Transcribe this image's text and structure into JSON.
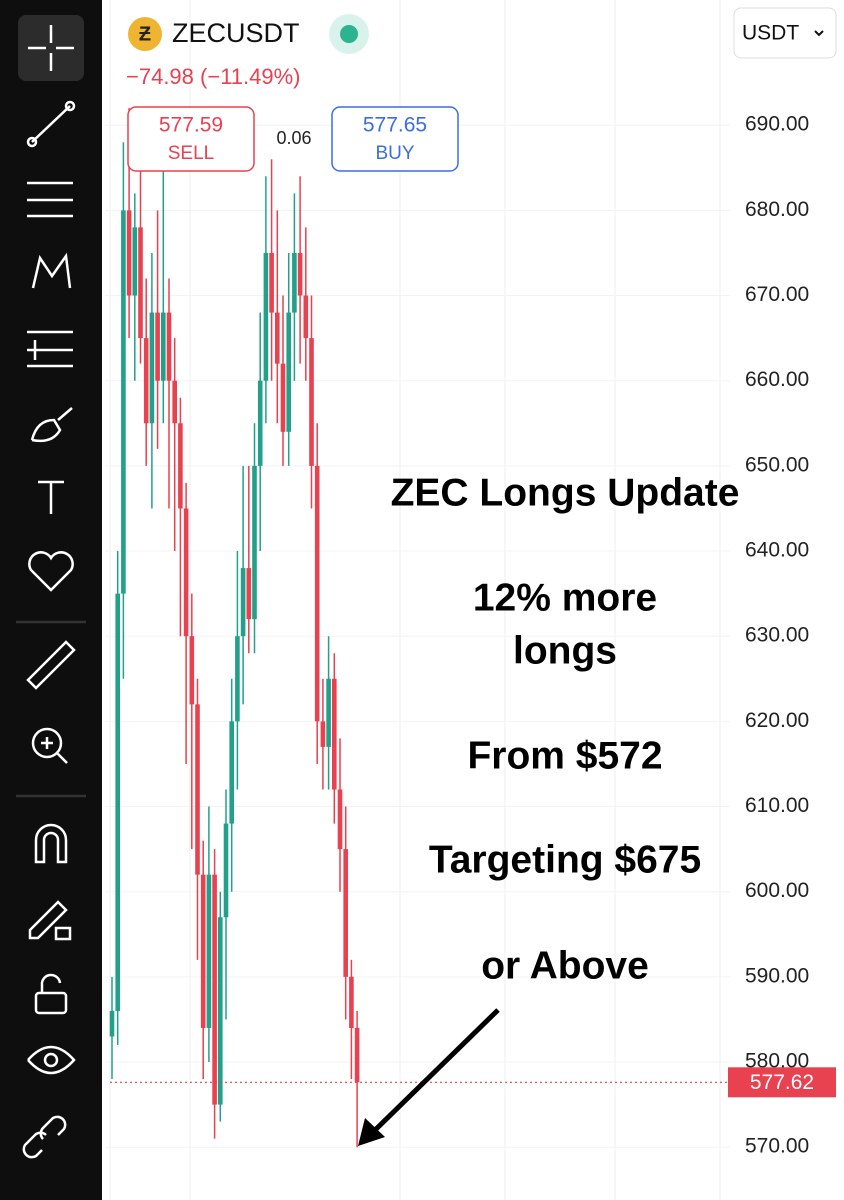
{
  "header": {
    "symbol": "ZECUSDT",
    "change": "−74.98 (−11.49%)",
    "sell_price": "577.59",
    "sell_label": "SELL",
    "buy_price": "577.65",
    "buy_label": "BUY",
    "spread": "0.06",
    "currency": "USDT"
  },
  "annotation": [
    "ZEC Longs Update",
    "12% more",
    "longs",
    "From $572",
    "Targeting $675",
    "or Above"
  ],
  "chart_data": {
    "type": "candlestick",
    "open": [
      583,
      586,
      635,
      680,
      670,
      678,
      665,
      655,
      668,
      660,
      668,
      660,
      655,
      645,
      630,
      622,
      602,
      584,
      602,
      575,
      597,
      608,
      620,
      630,
      638,
      632,
      650,
      660,
      675,
      668,
      662,
      654,
      668,
      675,
      670,
      665,
      650,
      620,
      617,
      625,
      612,
      605,
      590,
      584
    ],
    "high": [
      590,
      640,
      688,
      692,
      682,
      686,
      672,
      675,
      680,
      688,
      672,
      665,
      658,
      648,
      635,
      625,
      606,
      610,
      605,
      600,
      612,
      625,
      640,
      650,
      650,
      655,
      668,
      684,
      686,
      680,
      670,
      675,
      682,
      684,
      678,
      670,
      655,
      625,
      630,
      628,
      618,
      610,
      592,
      586
    ],
    "low": [
      578,
      582,
      625,
      665,
      660,
      662,
      650,
      645,
      652,
      655,
      645,
      640,
      630,
      615,
      605,
      592,
      578,
      580,
      571,
      573,
      585,
      600,
      612,
      622,
      628,
      628,
      640,
      655,
      660,
      655,
      650,
      650,
      660,
      662,
      660,
      645,
      615,
      612,
      612,
      608,
      600,
      585,
      578,
      570
    ],
    "close": [
      586,
      635,
      680,
      670,
      678,
      665,
      655,
      668,
      660,
      668,
      660,
      655,
      645,
      630,
      622,
      602,
      584,
      602,
      575,
      597,
      608,
      620,
      630,
      638,
      632,
      650,
      660,
      675,
      668,
      662,
      654,
      668,
      675,
      670,
      665,
      650,
      620,
      617,
      625,
      612,
      605,
      590,
      584,
      577.62
    ],
    "up_color": "#22a08a",
    "down_color": "#e8414f",
    "current_price": 577.62,
    "ylim": [
      563.8,
      704.7
    ],
    "yticks": [
      {
        "value": 570,
        "label": "570.00"
      },
      {
        "value": 580,
        "label": "580.00"
      },
      {
        "value": 590,
        "label": "590.00"
      },
      {
        "value": 600,
        "label": "600.00"
      },
      {
        "value": 610,
        "label": "610.00"
      },
      {
        "value": 620,
        "label": "620.00"
      },
      {
        "value": 630,
        "label": "630.00"
      },
      {
        "value": 640,
        "label": "640.00"
      },
      {
        "value": 650,
        "label": "650.00"
      },
      {
        "value": 660,
        "label": "660.00"
      },
      {
        "value": 670,
        "label": "670.00"
      },
      {
        "value": 680,
        "label": "680.00"
      },
      {
        "value": 690,
        "label": "690.00"
      }
    ],
    "grid": true
  }
}
